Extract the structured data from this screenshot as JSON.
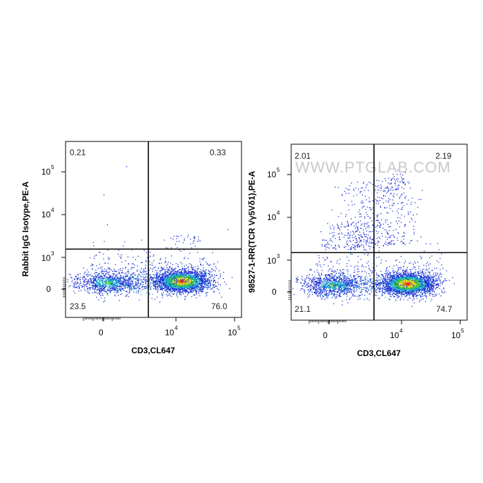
{
  "watermark": "WWW.PTGLAB.COM",
  "chart_data": [
    {
      "type": "scatter",
      "title": "",
      "xlabel": "CD3,CL647",
      "ylabel": "Rabbit IgG Isotype,PE-A",
      "x_ticks": [
        "0",
        "10",
        "10"
      ],
      "x_tick_exps": [
        "",
        "4",
        "5"
      ],
      "y_ticks": [
        "0",
        "10",
        "10",
        "10"
      ],
      "y_tick_exps": [
        "",
        "3",
        "4",
        "5"
      ],
      "scale": "biexponential",
      "gate": {
        "x_threshold_log": 3.55,
        "y_threshold_log": 3.15
      },
      "quadrants": {
        "upper_left": "0.21",
        "upper_right": "0.33",
        "lower_left": "23.5",
        "lower_right": "76.0"
      },
      "density_coloring": "blue-green-yellow-red"
    },
    {
      "type": "scatter",
      "title": "",
      "xlabel": "CD3,CL647",
      "ylabel": "98527-1-RR(TCR Vγ5Vδ1),PE-A",
      "x_ticks": [
        "0",
        "10",
        "10"
      ],
      "x_tick_exps": [
        "",
        "4",
        "5"
      ],
      "y_ticks": [
        "0",
        "10",
        "10",
        "10"
      ],
      "y_tick_exps": [
        "",
        "3",
        "4",
        "5"
      ],
      "scale": "biexponential",
      "gate": {
        "x_threshold_log": 3.55,
        "y_threshold_log": 3.15
      },
      "quadrants": {
        "upper_left": "2.01",
        "upper_right": "2.19",
        "lower_left": "21.1",
        "lower_right": "74.7"
      },
      "density_coloring": "blue-green-yellow-red"
    }
  ]
}
